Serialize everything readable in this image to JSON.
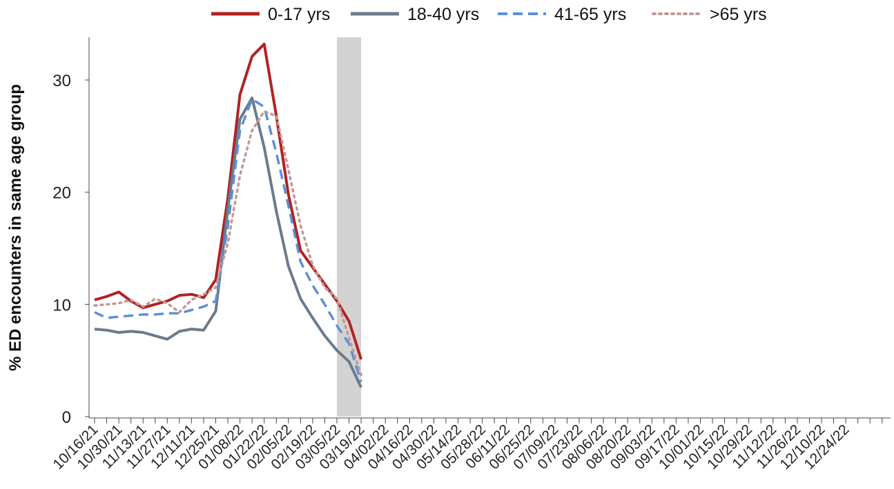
{
  "chart_data": {
    "type": "line",
    "title": "",
    "xlabel": "",
    "ylabel": "% ED encounters in same age group",
    "ylim": [
      0,
      34
    ],
    "yticks": [
      0,
      10,
      20,
      30
    ],
    "grid": false,
    "legend_position": "top",
    "x_tick_labels": [
      "10/16/21",
      "10/30/21",
      "11/13/21",
      "11/27/21",
      "12/11/21",
      "12/25/21",
      "01/08/22",
      "01/22/22",
      "02/05/22",
      "02/19/22",
      "03/05/22",
      "03/19/22",
      "04/02/22",
      "04/16/22",
      "04/30/22",
      "05/14/22",
      "05/28/22",
      "06/11/22",
      "06/25/22",
      "07/09/22",
      "07/23/22",
      "08/06/22",
      "08/20/22",
      "09/03/22",
      "09/17/22",
      "10/01/22",
      "10/15/22",
      "10/29/22",
      "11/12/22",
      "11/26/22",
      "12/10/22",
      "12/24/22"
    ],
    "num_weeks": 66,
    "shaded_region": {
      "start_week": 20,
      "end_week": 22
    },
    "series": [
      {
        "name": "0-17 yrs",
        "color": "#b22222",
        "dash": "solid",
        "values": [
          10.4,
          10.7,
          11.1,
          10.3,
          9.7,
          10.0,
          10.3,
          10.8,
          10.9,
          10.6,
          12.2,
          19.5,
          28.7,
          32.1,
          33.2,
          26.8,
          19.8,
          14.8,
          13.3,
          11.8,
          10.3,
          8.5,
          5.1
        ]
      },
      {
        "name": "18-40 yrs",
        "color": "#6b7b8c",
        "dash": "solid",
        "values": [
          7.8,
          7.7,
          7.5,
          7.6,
          7.5,
          7.2,
          6.9,
          7.6,
          7.8,
          7.7,
          9.4,
          18.5,
          26.5,
          28.4,
          24.0,
          18.3,
          13.4,
          10.5,
          8.8,
          7.2,
          5.9,
          4.9,
          2.6
        ]
      },
      {
        "name": "41-65 yrs",
        "color": "#5b8fd9",
        "dash": "dashed",
        "values": [
          9.3,
          8.8,
          8.9,
          9.0,
          9.1,
          9.1,
          9.2,
          9.2,
          9.5,
          9.8,
          10.3,
          17.0,
          25.5,
          28.3,
          27.6,
          23.5,
          18.8,
          13.8,
          11.7,
          10.0,
          8.1,
          6.5,
          3.1
        ]
      },
      {
        "name": ">65 yrs",
        "color": "#c49797",
        "dash": "dotted",
        "values": [
          9.9,
          10.0,
          10.1,
          10.4,
          9.8,
          10.5,
          10.1,
          9.3,
          10.4,
          10.9,
          11.5,
          15.5,
          21.5,
          25.5,
          27.2,
          26.8,
          22.0,
          17.0,
          13.5,
          11.5,
          10.5,
          7.0,
          3.7
        ]
      }
    ]
  }
}
